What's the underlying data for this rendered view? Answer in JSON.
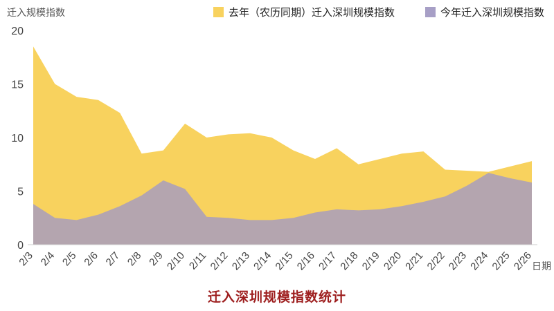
{
  "y_axis_label": "迁入规模指数",
  "x_axis_label": "日期",
  "title": "迁入深圳规模指数统计",
  "title_color": "#9e1f1f",
  "legend": [
    {
      "label": "去年（农历同期）迁入深圳规模指数",
      "color": "#f8d25e"
    },
    {
      "label": "今年迁入深圳规模指数",
      "color": "#a79fc6"
    }
  ],
  "chart_data": {
    "type": "area",
    "title": "迁入深圳规模指数统计",
    "xlabel": "日期",
    "ylabel": "迁入规模指数",
    "ylim": [
      0,
      20
    ],
    "yticks": [
      0,
      5,
      10,
      15,
      20
    ],
    "grid": false,
    "legend_position": "top",
    "categories": [
      "2/3",
      "2/4",
      "2/5",
      "2/6",
      "2/7",
      "2/8",
      "2/9",
      "2/10",
      "2/11",
      "2/12",
      "2/13",
      "2/14",
      "2/15",
      "2/16",
      "2/17",
      "2/18",
      "2/19",
      "2/20",
      "2/21",
      "2/22",
      "2/23",
      "2/24",
      "2/25",
      "2/26"
    ],
    "series": [
      {
        "name": "去年（农历同期）迁入深圳规模指数",
        "color": "#f8d25e",
        "opacity": 1,
        "values": [
          18.5,
          15.0,
          13.8,
          13.5,
          12.3,
          8.5,
          8.8,
          11.3,
          10.0,
          10.3,
          10.4,
          10.0,
          8.8,
          8.0,
          9.0,
          7.5,
          8.0,
          8.5,
          8.7,
          7.0,
          6.9,
          6.8,
          7.3,
          7.8
        ]
      },
      {
        "name": "今年迁入深圳规模指数",
        "color": "#aca0b8",
        "opacity": 0.9,
        "values": [
          3.8,
          2.5,
          2.3,
          2.8,
          3.6,
          4.6,
          6.0,
          5.2,
          2.6,
          2.5,
          2.3,
          2.3,
          2.5,
          3.0,
          3.3,
          3.2,
          3.3,
          3.6,
          4.0,
          4.5,
          5.5,
          6.7,
          6.2,
          5.8
        ]
      }
    ]
  }
}
